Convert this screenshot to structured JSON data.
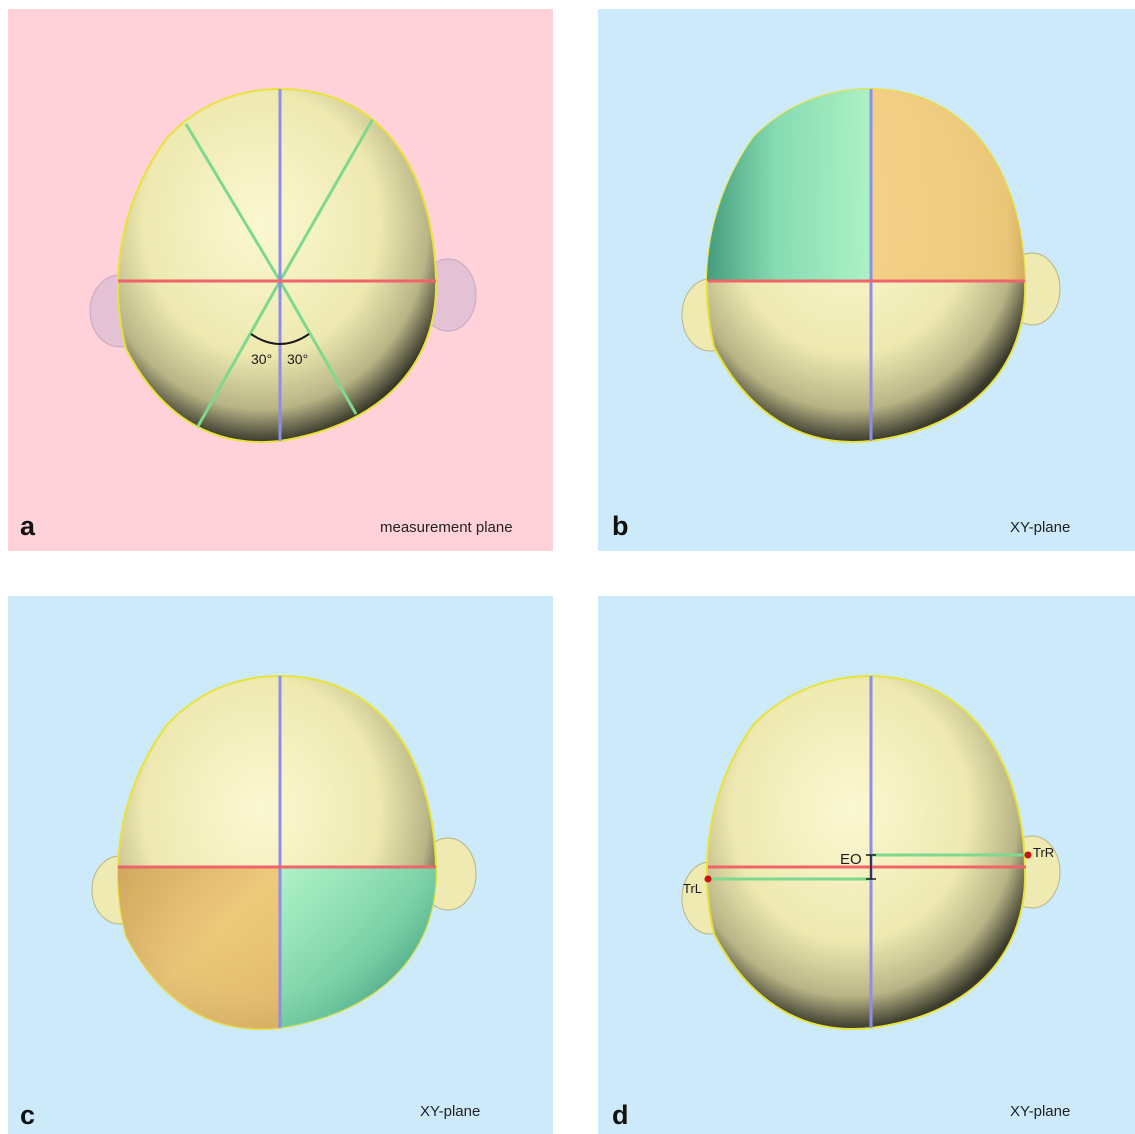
{
  "colors": {
    "panel_a_bg": "#ffd2da",
    "panel_bg": "#cdeafb",
    "skull": "#f6f1bc",
    "skull_shadow": "#2a2a22",
    "outline": "#e8e33a",
    "ear_a": "#e4c2d6",
    "ear": "#eeeab2",
    "sagittal_line": "#8d8ee8",
    "transverse_line": "#ee6468",
    "oblique_line": "#7ed88e",
    "quadrant_green": "#8ee8b6",
    "quadrant_orange": "#f0c876"
  },
  "panels": [
    {
      "letter": "a",
      "plane_label": "measurement plane",
      "angle_left": "30°",
      "angle_right": "30°"
    },
    {
      "letter": "b",
      "plane_label": "XY-plane"
    },
    {
      "letter": "c",
      "plane_label": "XY-plane"
    },
    {
      "letter": "d",
      "plane_label": "XY-plane",
      "landmark_left": "TrL",
      "landmark_right": "TrR",
      "offset_label": "EO"
    }
  ]
}
